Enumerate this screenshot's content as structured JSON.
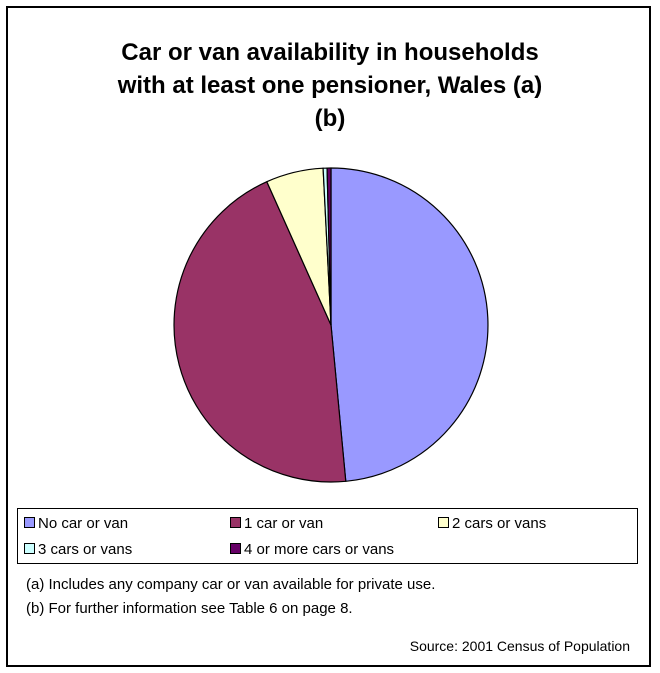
{
  "chart_data": {
    "type": "pie",
    "title": "Car or van availability in households with at least one pensioner, Wales (a) (b)",
    "title_lines": [
      "Car or van availability in households",
      "with at least one pensioner, Wales (a)",
      "(b)"
    ],
    "slices": [
      {
        "label": "No car or van",
        "value": 48.5,
        "color": "#9999ff"
      },
      {
        "label": "1 car or van",
        "value": 44.8,
        "color": "#993366"
      },
      {
        "label": "2 cars or vans",
        "value": 5.9,
        "color": "#ffffcc"
      },
      {
        "label": "3 cars or vans",
        "value": 0.4,
        "color": "#ccffff"
      },
      {
        "label": "4 or more cars or vans",
        "value": 0.4,
        "color": "#660066"
      }
    ],
    "legend_position": "bottom",
    "start": "12 o'clock",
    "direction": "clockwise"
  },
  "notes": {
    "a": "(a) Includes any company car or van available for private use.",
    "b": "(b) For further information see Table 6 on page 8."
  },
  "source": "Source: 2001 Census of Population"
}
